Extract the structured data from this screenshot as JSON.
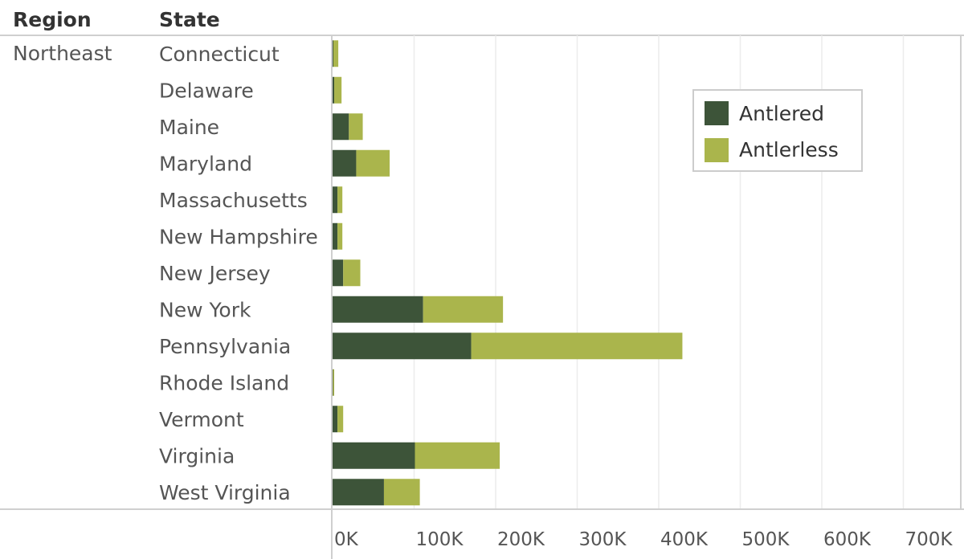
{
  "headers": {
    "region": "Region",
    "state": "State"
  },
  "region_name": "Northeast",
  "chart_data": {
    "type": "bar",
    "orientation": "horizontal",
    "stacked": true,
    "categories": [
      "Connecticut",
      "Delaware",
      "Maine",
      "Maryland",
      "Massachusetts",
      "New Hampshire",
      "New Jersey",
      "New York",
      "Pennsylvania",
      "Rhode Island",
      "Vermont",
      "Virginia",
      "West Virginia"
    ],
    "series": [
      {
        "name": "Antlered",
        "color": "#3d5439",
        "values": [
          1000,
          2000,
          20000,
          29000,
          6000,
          6000,
          13000,
          111000,
          170000,
          500,
          6000,
          101000,
          63000
        ]
      },
      {
        "name": "Antlerless",
        "color": "#aab54c",
        "values": [
          6000,
          9000,
          17000,
          41000,
          6000,
          6000,
          21000,
          98000,
          259000,
          1500,
          7000,
          104000,
          44000
        ]
      }
    ],
    "x_ticks": [
      "0K",
      "100K",
      "200K",
      "300K",
      "400K",
      "500K",
      "600K",
      "700K"
    ],
    "xlim": [
      0,
      760000
    ],
    "grid": true,
    "legend_position": "top-right"
  }
}
